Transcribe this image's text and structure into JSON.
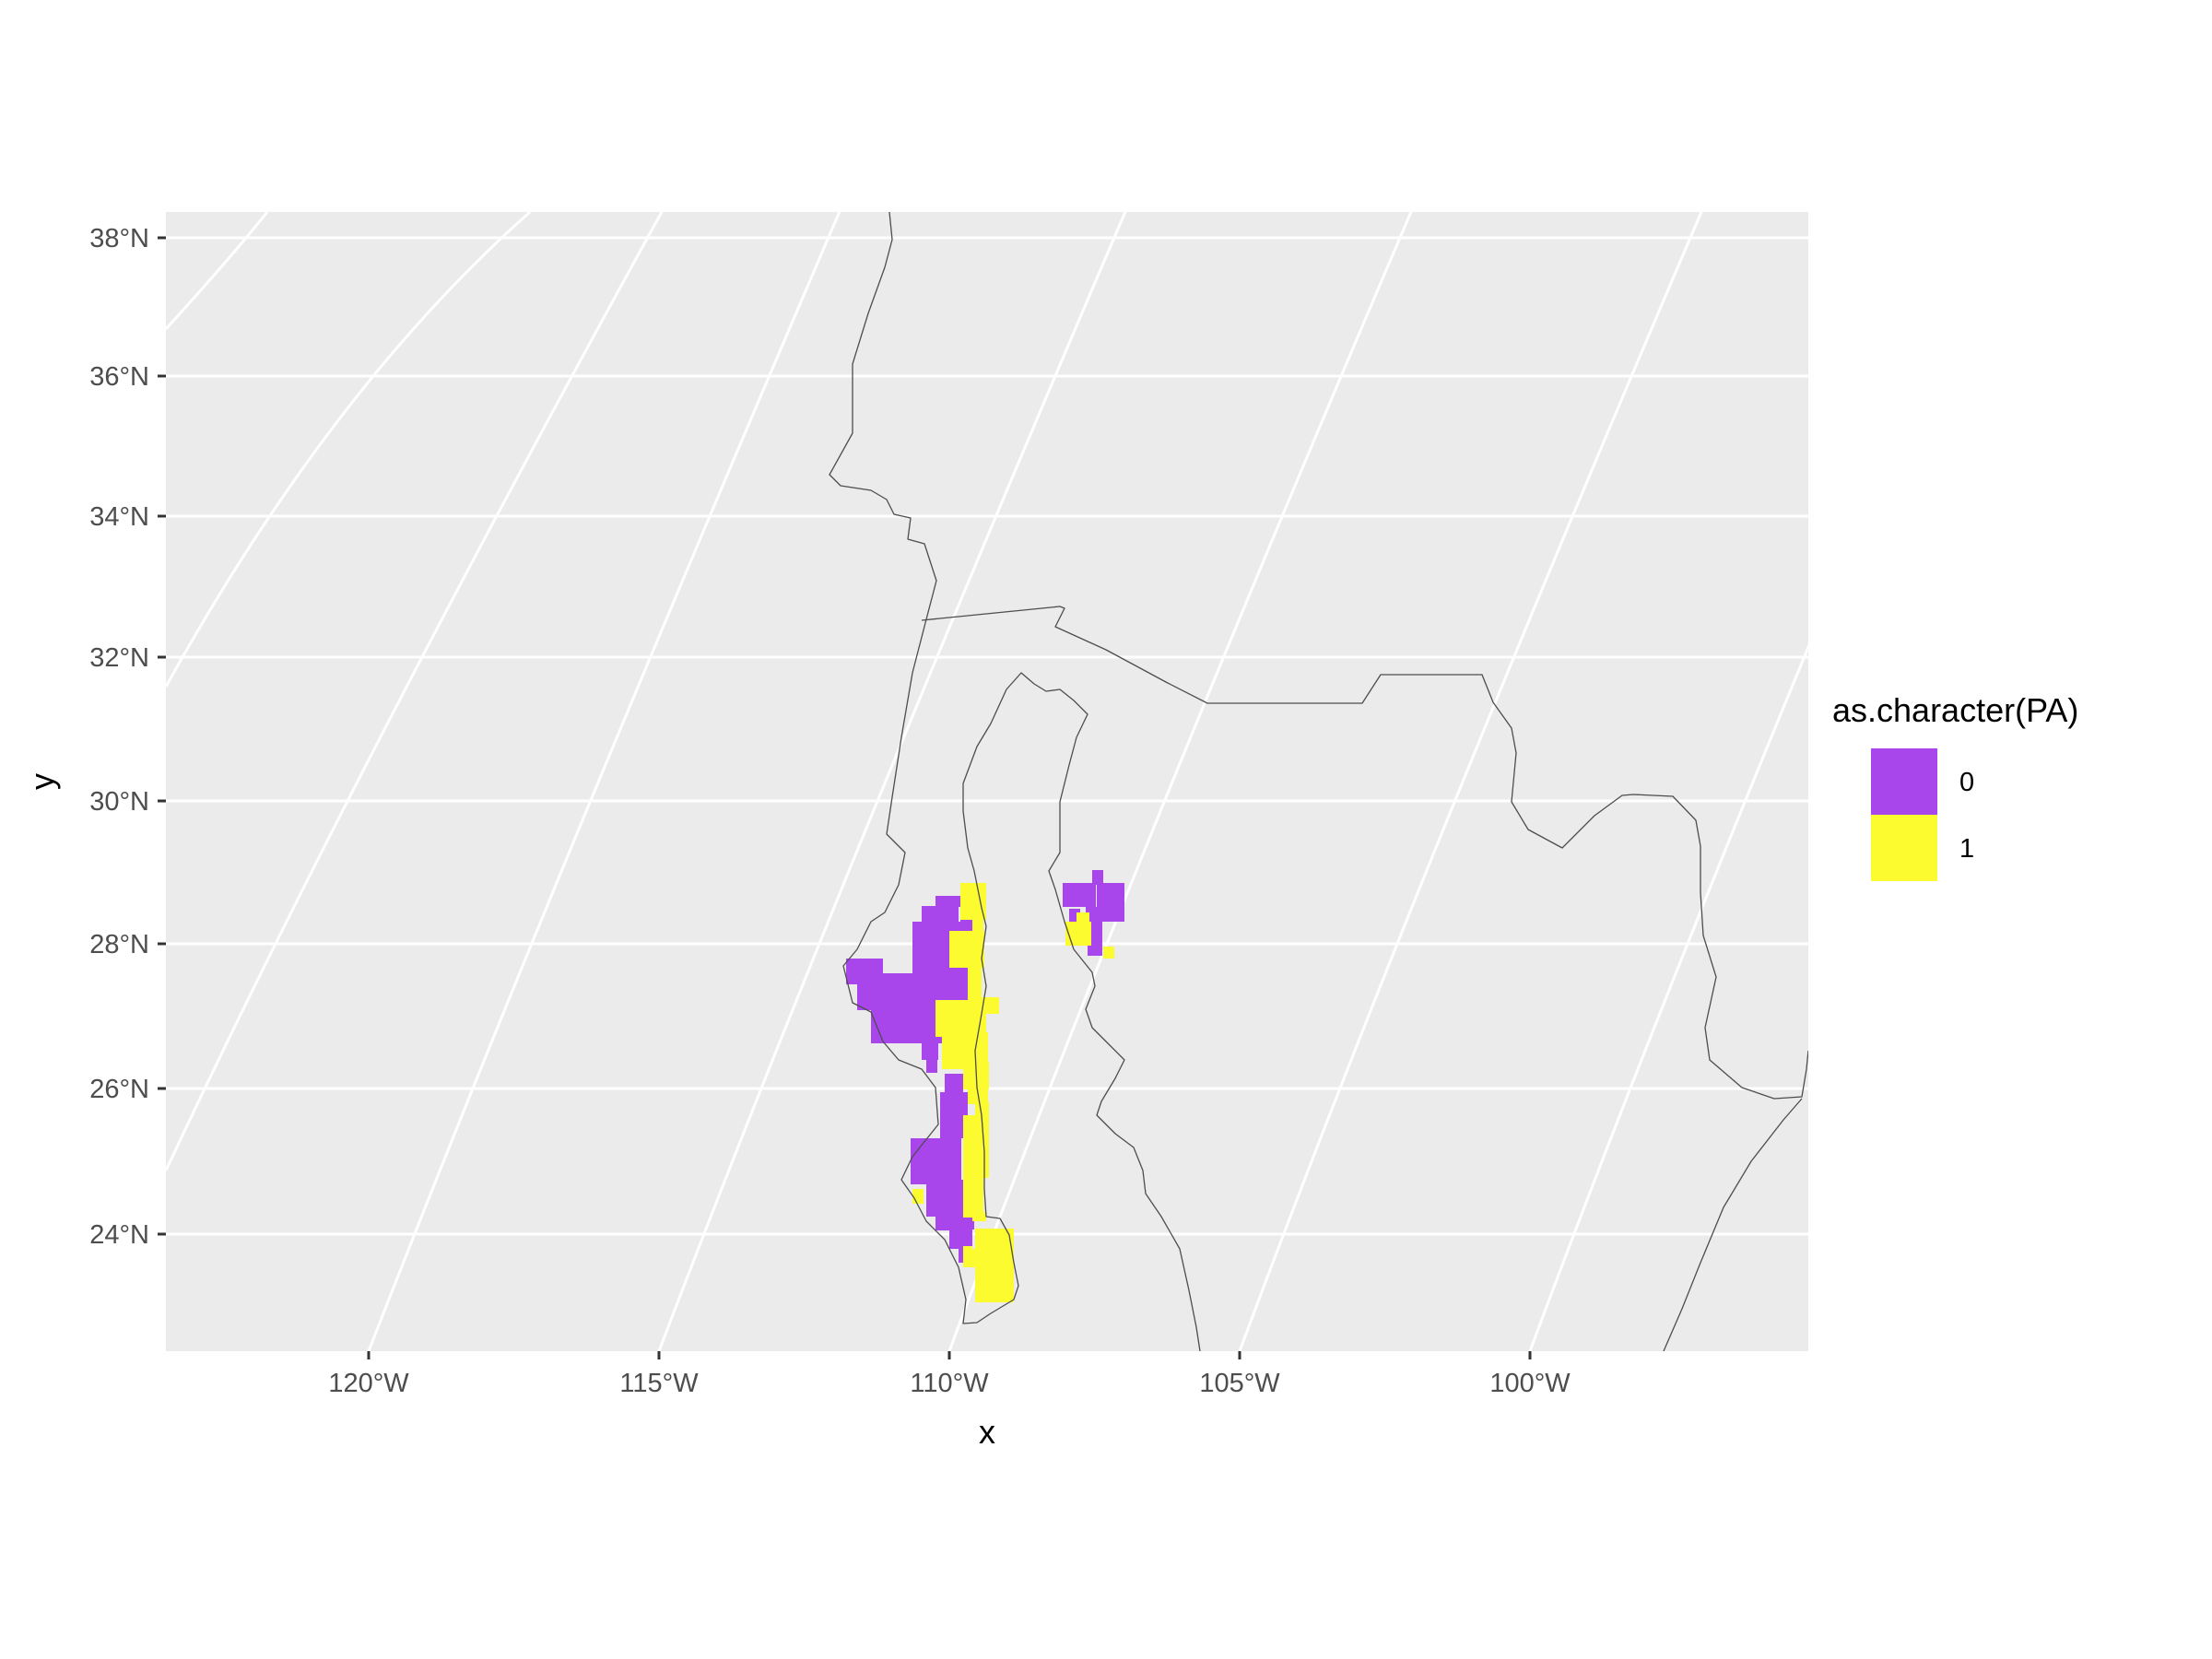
{
  "chart_data": {
    "type": "map",
    "xlabel": "x",
    "ylabel": "y",
    "projection": "conic (curved meridians and parallels, graticule shown)",
    "x_ticks": [
      "120°W",
      "115°W",
      "110°W",
      "105°W",
      "100°W"
    ],
    "y_ticks": [
      "24°N",
      "26°N",
      "28°N",
      "30°N",
      "32°N",
      "34°N",
      "36°N",
      "38°N"
    ],
    "grid": true,
    "legend": {
      "title": "as.character(PA)",
      "placement": "right",
      "entries": [
        {
          "label": "0",
          "color": "#a846eb"
        },
        {
          "label": "1",
          "color": "#fbfb2f"
        }
      ]
    },
    "colors": {
      "panel_background": "#ebebeb",
      "gridline": "#ffffff",
      "boundary_line": "#4d4d4d"
    },
    "regions": [
      {
        "value": "0",
        "area": "Baja California Sur, Vizcaíno peninsula and central peninsula (about 110–112°W, 24–28.5°N)"
      },
      {
        "value": "1",
        "area": "east coast of Baja California Sur along the Gulf of California (about 109.5–110°W, 23–28.5°N)"
      },
      {
        "value": "0",
        "area": "Sonora / Chihuahua near 107.5–108.5°W, 28–29°N"
      },
      {
        "value": "1",
        "area": "small patch near 108°W, 28°N"
      }
    ]
  }
}
